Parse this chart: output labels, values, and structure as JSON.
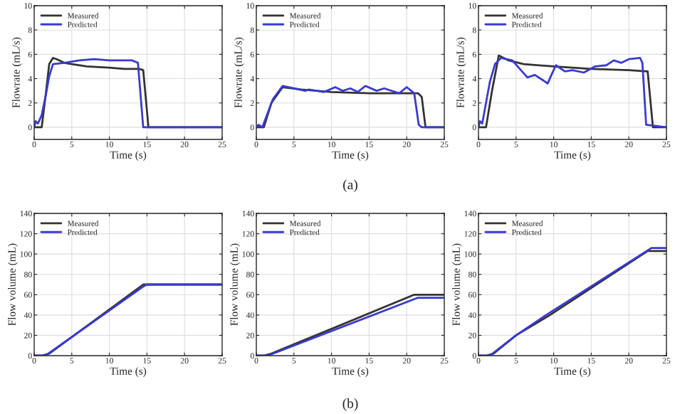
{
  "chart_data": [
    {
      "type": "line",
      "xlabel": "Time (s)",
      "ylabel": "Flowrate (mL/s)",
      "xlim": [
        0,
        25
      ],
      "xticks": [
        0,
        5,
        10,
        15,
        20,
        25
      ],
      "ylim": [
        -1,
        10
      ],
      "yticks": [
        0,
        2,
        4,
        6,
        8,
        10
      ],
      "grid": true,
      "legend": "top left",
      "series": [
        {
          "name": "Measured",
          "color": "#333333",
          "x": [
            0,
            1,
            1.5,
            2,
            2.5,
            3,
            4,
            5,
            7,
            10,
            12,
            14,
            14.5,
            15.2,
            18,
            21,
            25
          ],
          "values": [
            0,
            0,
            2.5,
            5.2,
            5.7,
            5.6,
            5.3,
            5.2,
            5.0,
            4.9,
            4.8,
            4.8,
            4.7,
            0,
            0,
            0,
            0
          ]
        },
        {
          "name": "Predicted",
          "color": "#3a3ad0",
          "x": [
            0,
            0.2,
            0.5,
            1,
            1.6,
            2,
            2.5,
            4,
            6,
            8,
            10,
            13,
            13.8,
            14.5,
            18,
            25
          ],
          "values": [
            0,
            0.5,
            0.3,
            1,
            2.8,
            4.2,
            5.2,
            5.3,
            5.5,
            5.6,
            5.5,
            5.5,
            5.3,
            0,
            0,
            0
          ]
        }
      ]
    },
    {
      "type": "line",
      "xlabel": "Time (s)",
      "ylabel": "Flowrate (mL/s)",
      "xlim": [
        0,
        25
      ],
      "xticks": [
        0,
        5,
        10,
        15,
        20,
        25
      ],
      "ylim": [
        -1,
        10
      ],
      "yticks": [
        0,
        2,
        4,
        6,
        8,
        10
      ],
      "grid": true,
      "legend": "top left",
      "annotations": [
        "(a)"
      ],
      "series": [
        {
          "name": "Measured",
          "color": "#333333",
          "x": [
            0,
            1,
            2,
            3.5,
            6,
            10,
            15,
            21.5,
            22,
            22.5,
            25
          ],
          "values": [
            0,
            0,
            2,
            3.3,
            3.1,
            2.9,
            2.8,
            2.8,
            2.5,
            0,
            0
          ]
        },
        {
          "name": "Predicted",
          "color": "#3a3ad0",
          "x": [
            0,
            0.3,
            0.8,
            2.2,
            3.5,
            5,
            6.5,
            7,
            9,
            10.5,
            11.5,
            12.5,
            13.5,
            14.5,
            16,
            17,
            19,
            20,
            21,
            21.6,
            22,
            25
          ],
          "values": [
            0,
            0.2,
            0,
            2.3,
            3.4,
            3.2,
            3.0,
            3.1,
            2.9,
            3.3,
            3.0,
            3.2,
            2.9,
            3.4,
            3.0,
            3.2,
            2.8,
            3.3,
            2.8,
            0.2,
            0,
            0
          ]
        }
      ]
    },
    {
      "type": "line",
      "xlabel": "Time (s)",
      "ylabel": "Flowrate (mL/s)",
      "xlim": [
        0,
        25
      ],
      "xticks": [
        0,
        5,
        10,
        15,
        20,
        25
      ],
      "ylim": [
        -1,
        10
      ],
      "yticks": [
        0,
        2,
        4,
        6,
        8,
        10
      ],
      "grid": true,
      "legend": "top left",
      "series": [
        {
          "name": "Measured",
          "color": "#333333",
          "x": [
            0,
            1,
            1.8,
            2.7,
            4,
            6,
            10,
            15,
            20,
            22.5,
            23.2,
            25
          ],
          "values": [
            0,
            0,
            3,
            5.9,
            5.5,
            5.2,
            5.0,
            4.8,
            4.7,
            4.6,
            0,
            0
          ]
        },
        {
          "name": "Predicted",
          "color": "#3a3ad0",
          "x": [
            0,
            0.2,
            0.5,
            1.5,
            2.2,
            3,
            4.5,
            5.5,
            6.5,
            7.5,
            8.5,
            9.2,
            9.7,
            10.3,
            11.5,
            12.5,
            14,
            15.5,
            17,
            18,
            19,
            20,
            21.5,
            21.8,
            22.3,
            25
          ],
          "values": [
            0,
            0.5,
            0.3,
            3.7,
            5.2,
            5.7,
            5.5,
            4.8,
            4.1,
            4.3,
            3.9,
            3.6,
            4.3,
            5.1,
            4.6,
            4.7,
            4.5,
            5.0,
            5.1,
            5.5,
            5.3,
            5.6,
            5.7,
            5.3,
            0.2,
            0
          ]
        }
      ]
    },
    {
      "type": "line",
      "xlabel": "Time (s)",
      "ylabel": "Flow volume (mL)",
      "xlim": [
        0,
        25
      ],
      "xticks": [
        0,
        5,
        10,
        15,
        20,
        25
      ],
      "ylim": [
        0,
        140
      ],
      "yticks": [
        0,
        20,
        40,
        60,
        80,
        100,
        120,
        140
      ],
      "grid": true,
      "legend": "top left",
      "series": [
        {
          "name": "Measured",
          "color": "#333333",
          "x": [
            0,
            1,
            2,
            14.5,
            25
          ],
          "values": [
            0,
            0,
            2,
            70,
            70
          ]
        },
        {
          "name": "Predicted",
          "color": "#3a3ad0",
          "x": [
            0,
            1.5,
            14.5,
            15,
            25
          ],
          "values": [
            0,
            0,
            68,
            70,
            70
          ]
        }
      ]
    },
    {
      "type": "line",
      "xlabel": "Time (s)",
      "ylabel": "Flow volume (mL)",
      "xlim": [
        0,
        25
      ],
      "xticks": [
        0,
        5,
        10,
        15,
        20,
        25
      ],
      "ylim": [
        0,
        140
      ],
      "yticks": [
        0,
        20,
        40,
        60,
        80,
        100,
        120,
        140
      ],
      "grid": true,
      "legend": "top left",
      "annotations": [
        "(b)"
      ],
      "series": [
        {
          "name": "Measured",
          "color": "#333333",
          "x": [
            0,
            1,
            2,
            21,
            25
          ],
          "values": [
            0,
            0,
            2,
            60,
            60
          ]
        },
        {
          "name": "Predicted",
          "color": "#3a3ad0",
          "x": [
            0,
            1.5,
            21.5,
            25
          ],
          "values": [
            0,
            0,
            57,
            57
          ]
        }
      ]
    },
    {
      "type": "line",
      "xlabel": "Time (s)",
      "ylabel": "Flow volume (mL)",
      "xlim": [
        0,
        25
      ],
      "xticks": [
        0,
        5,
        10,
        15,
        20,
        25
      ],
      "ylim": [
        0,
        140
      ],
      "yticks": [
        0,
        20,
        40,
        60,
        80,
        100,
        120,
        140
      ],
      "grid": true,
      "legend": "top left",
      "series": [
        {
          "name": "Measured",
          "color": "#333333",
          "x": [
            0,
            1,
            2,
            5,
            9.5,
            22.5,
            25
          ],
          "values": [
            0,
            0,
            2,
            20,
            40,
            103,
            103
          ]
        },
        {
          "name": "Predicted",
          "color": "#3a3ad0",
          "x": [
            0,
            1.5,
            5,
            9,
            23,
            25
          ],
          "values": [
            0,
            0,
            20,
            40,
            106,
            106
          ]
        }
      ]
    }
  ]
}
